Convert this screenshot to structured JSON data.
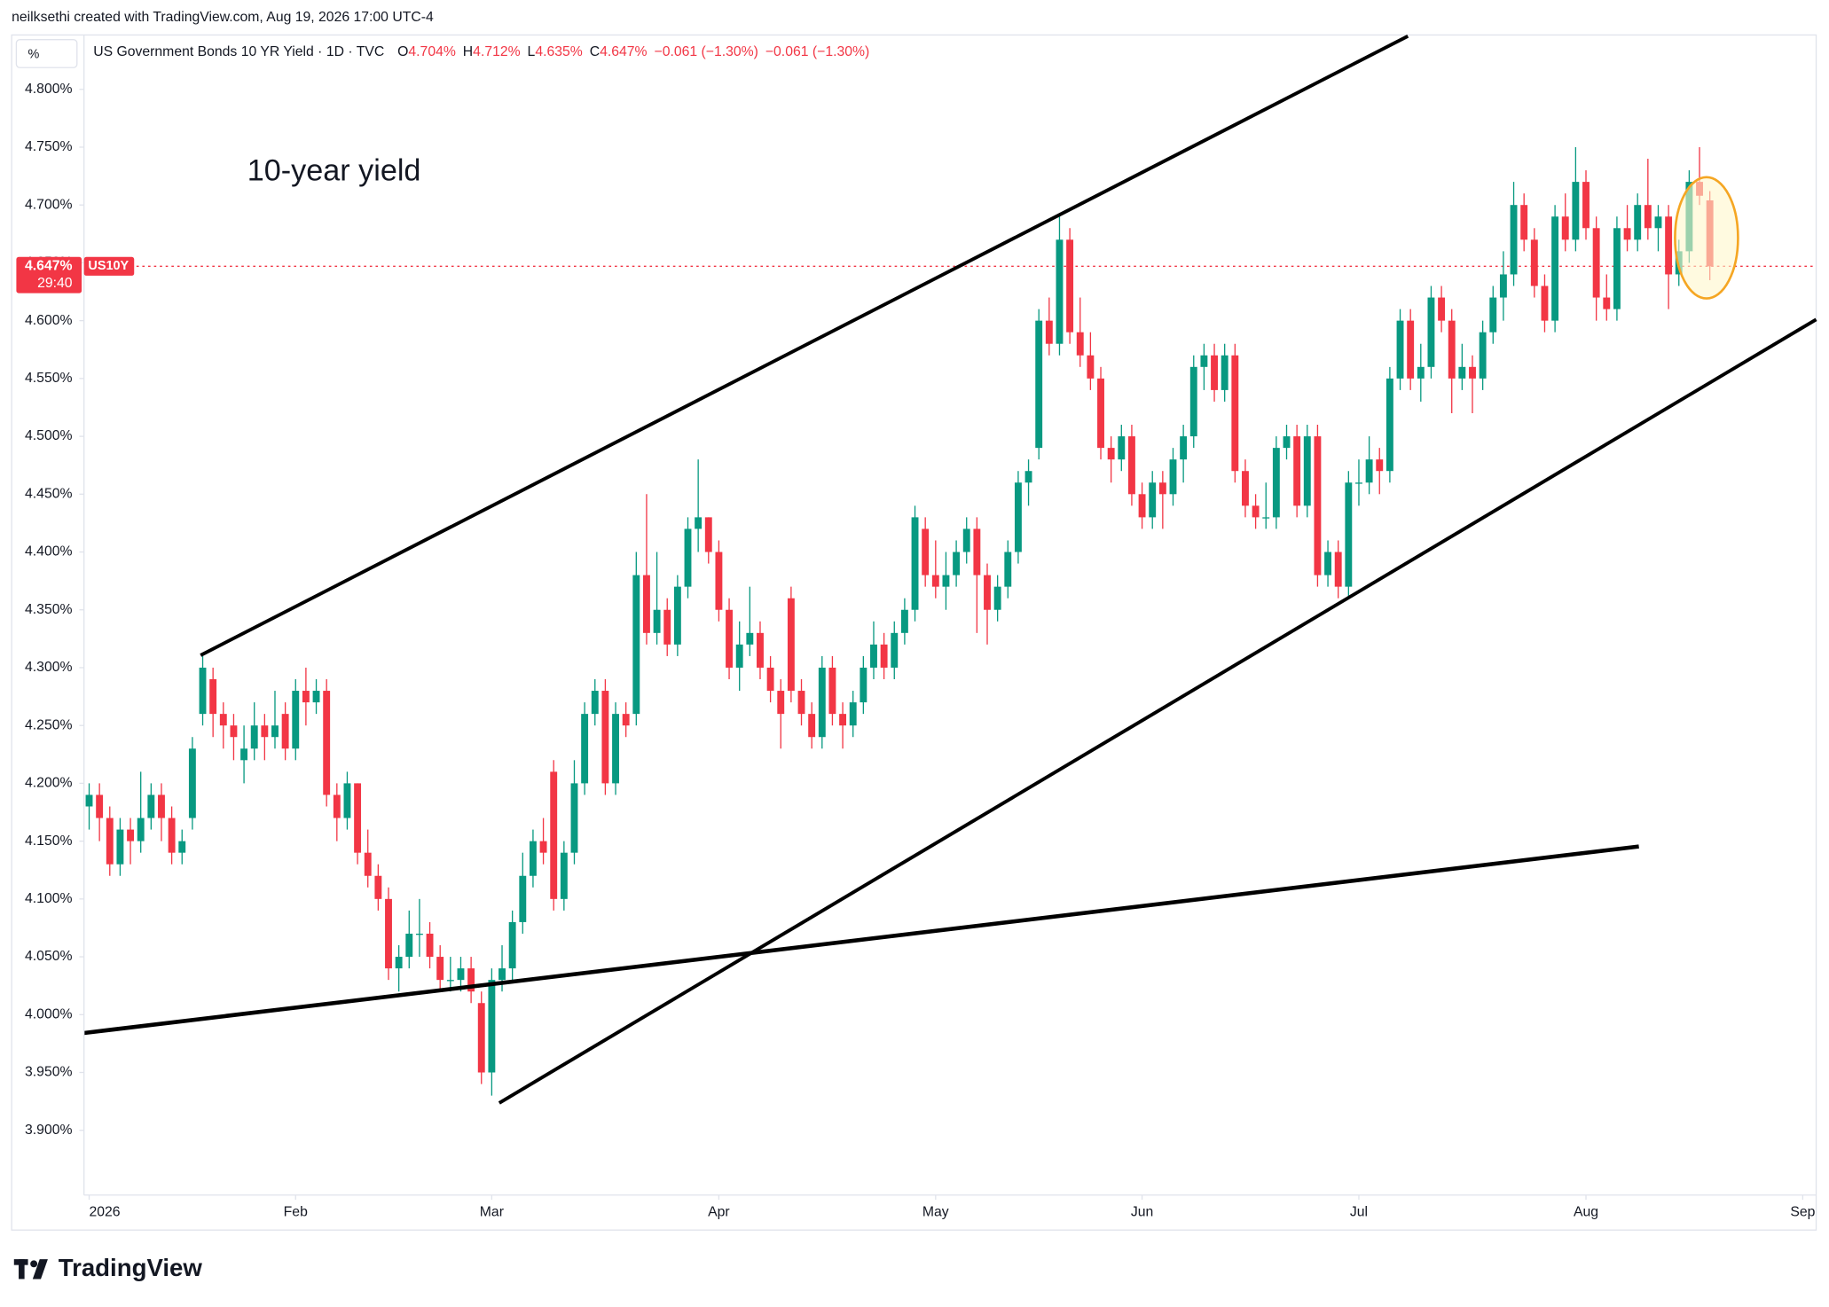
{
  "chart_data": {
    "type": "candlestick",
    "header": "neilksethi created with TradingView.com, Aug 19, 2026 17:00 UTC-4",
    "title": "US Government Bonds 10 YR Yield · 1D · TVC",
    "ohlc_legend": [
      {
        "key": "O",
        "text": "4.704%"
      },
      {
        "key": "H",
        "text": "4.712%"
      },
      {
        "key": "L",
        "text": "4.635%"
      },
      {
        "key": "C",
        "text": "4.647%"
      }
    ],
    "change": [
      "−0.061 (−1.30%)",
      "−0.061 (−1.30%)"
    ],
    "unit": "%",
    "annotation": "10-year yield",
    "symbol": "US10Y",
    "countdown": "29:40",
    "last_price": {
      "value": 4.647,
      "label": "4.647%"
    },
    "logo": "TradingView",
    "up_color": "#089981",
    "down_color": "#f23645",
    "xlim": [
      -0.5,
      167.3
    ],
    "xticks": [
      {
        "value": 0,
        "label": "2026"
      },
      {
        "value": 20,
        "label": "Feb"
      },
      {
        "value": 39,
        "label": "Mar"
      },
      {
        "value": 61,
        "label": "Apr"
      },
      {
        "value": 82,
        "label": "May"
      },
      {
        "value": 102,
        "label": "Jun"
      },
      {
        "value": 123,
        "label": "Jul"
      },
      {
        "value": 145,
        "label": "Aug"
      },
      {
        "value": 166,
        "label": "Sep"
      }
    ],
    "ylim": [
      3.844,
      4.847
    ],
    "yticks": [
      {
        "value": 3.9,
        "label": "3.900%"
      },
      {
        "value": 3.95,
        "label": "3.950%"
      },
      {
        "value": 4.0,
        "label": "4.000%"
      },
      {
        "value": 4.05,
        "label": "4.050%"
      },
      {
        "value": 4.1,
        "label": "4.100%"
      },
      {
        "value": 4.15,
        "label": "4.150%"
      },
      {
        "value": 4.2,
        "label": "4.200%"
      },
      {
        "value": 4.25,
        "label": "4.250%"
      },
      {
        "value": 4.3,
        "label": "4.300%"
      },
      {
        "value": 4.35,
        "label": "4.350%"
      },
      {
        "value": 4.4,
        "label": "4.400%"
      },
      {
        "value": 4.45,
        "label": "4.450%"
      },
      {
        "value": 4.5,
        "label": "4.500%"
      },
      {
        "value": 4.55,
        "label": "4.550%"
      },
      {
        "value": 4.6,
        "label": "4.600%"
      },
      {
        "value": 4.65,
        "label": "4.650%"
      },
      {
        "value": 4.7,
        "label": "4.700%"
      },
      {
        "value": 4.75,
        "label": "4.750%"
      },
      {
        "value": 4.8,
        "label": "4.800%"
      }
    ],
    "candles": [
      [
        4.18,
        4.2,
        4.16,
        4.19
      ],
      [
        4.19,
        4.2,
        4.15,
        4.17
      ],
      [
        4.17,
        4.18,
        4.12,
        4.13
      ],
      [
        4.13,
        4.17,
        4.12,
        4.16
      ],
      [
        4.16,
        4.17,
        4.13,
        4.15
      ],
      [
        4.15,
        4.21,
        4.14,
        4.17
      ],
      [
        4.17,
        4.2,
        4.16,
        4.19
      ],
      [
        4.19,
        4.2,
        4.15,
        4.17
      ],
      [
        4.17,
        4.18,
        4.13,
        4.14
      ],
      [
        4.14,
        4.16,
        4.13,
        4.15
      ],
      [
        4.17,
        4.24,
        4.16,
        4.23
      ],
      [
        4.26,
        4.31,
        4.25,
        4.3
      ],
      [
        4.29,
        4.3,
        4.24,
        4.26
      ],
      [
        4.26,
        4.27,
        4.23,
        4.25
      ],
      [
        4.25,
        4.26,
        4.22,
        4.24
      ],
      [
        4.22,
        4.25,
        4.2,
        4.23
      ],
      [
        4.23,
        4.27,
        4.22,
        4.25
      ],
      [
        4.25,
        4.26,
        4.22,
        4.24
      ],
      [
        4.24,
        4.28,
        4.23,
        4.25
      ],
      [
        4.26,
        4.27,
        4.22,
        4.23
      ],
      [
        4.23,
        4.29,
        4.22,
        4.28
      ],
      [
        4.28,
        4.3,
        4.25,
        4.27
      ],
      [
        4.27,
        4.29,
        4.26,
        4.28
      ],
      [
        4.28,
        4.29,
        4.18,
        4.19
      ],
      [
        4.19,
        4.2,
        4.15,
        4.17
      ],
      [
        4.17,
        4.21,
        4.16,
        4.2
      ],
      [
        4.2,
        4.2,
        4.13,
        4.14
      ],
      [
        4.14,
        4.16,
        4.11,
        4.12
      ],
      [
        4.12,
        4.13,
        4.09,
        4.1
      ],
      [
        4.1,
        4.11,
        4.03,
        4.04
      ],
      [
        4.04,
        4.06,
        4.02,
        4.05
      ],
      [
        4.05,
        4.09,
        4.04,
        4.07
      ],
      [
        4.07,
        4.1,
        4.05,
        4.07
      ],
      [
        4.07,
        4.08,
        4.04,
        4.05
      ],
      [
        4.05,
        4.06,
        4.02,
        4.03
      ],
      [
        4.03,
        4.05,
        4.02,
        4.03
      ],
      [
        4.03,
        4.05,
        4.02,
        4.04
      ],
      [
        4.04,
        4.05,
        4.01,
        4.02
      ],
      [
        4.01,
        4.02,
        3.94,
        3.95
      ],
      [
        3.95,
        4.04,
        3.93,
        4.03
      ],
      [
        4.03,
        4.06,
        4.02,
        4.04
      ],
      [
        4.04,
        4.09,
        4.03,
        4.08
      ],
      [
        4.08,
        4.14,
        4.07,
        4.12
      ],
      [
        4.12,
        4.16,
        4.11,
        4.15
      ],
      [
        4.15,
        4.17,
        4.13,
        4.14
      ],
      [
        4.21,
        4.22,
        4.09,
        4.1
      ],
      [
        4.1,
        4.15,
        4.09,
        4.14
      ],
      [
        4.14,
        4.22,
        4.13,
        4.2
      ],
      [
        4.2,
        4.27,
        4.19,
        4.26
      ],
      [
        4.26,
        4.29,
        4.25,
        4.28
      ],
      [
        4.28,
        4.29,
        4.19,
        4.2
      ],
      [
        4.2,
        4.27,
        4.19,
        4.26
      ],
      [
        4.26,
        4.27,
        4.24,
        4.25
      ],
      [
        4.26,
        4.4,
        4.25,
        4.38
      ],
      [
        4.38,
        4.45,
        4.32,
        4.33
      ],
      [
        4.33,
        4.4,
        4.32,
        4.35
      ],
      [
        4.35,
        4.36,
        4.31,
        4.32
      ],
      [
        4.32,
        4.38,
        4.31,
        4.37
      ],
      [
        4.37,
        4.43,
        4.36,
        4.42
      ],
      [
        4.42,
        4.48,
        4.4,
        4.43
      ],
      [
        4.43,
        4.43,
        4.39,
        4.4
      ],
      [
        4.4,
        4.41,
        4.34,
        4.35
      ],
      [
        4.35,
        4.36,
        4.29,
        4.3
      ],
      [
        4.3,
        4.34,
        4.28,
        4.32
      ],
      [
        4.32,
        4.37,
        4.31,
        4.33
      ],
      [
        4.33,
        4.34,
        4.29,
        4.3
      ],
      [
        4.3,
        4.31,
        4.27,
        4.28
      ],
      [
        4.28,
        4.29,
        4.23,
        4.26
      ],
      [
        4.36,
        4.37,
        4.27,
        4.28
      ],
      [
        4.28,
        4.29,
        4.25,
        4.26
      ],
      [
        4.26,
        4.27,
        4.23,
        4.24
      ],
      [
        4.24,
        4.31,
        4.23,
        4.3
      ],
      [
        4.3,
        4.31,
        4.25,
        4.26
      ],
      [
        4.26,
        4.27,
        4.23,
        4.25
      ],
      [
        4.25,
        4.28,
        4.24,
        4.27
      ],
      [
        4.27,
        4.31,
        4.26,
        4.3
      ],
      [
        4.3,
        4.34,
        4.29,
        4.32
      ],
      [
        4.32,
        4.33,
        4.29,
        4.3
      ],
      [
        4.3,
        4.34,
        4.29,
        4.33
      ],
      [
        4.33,
        4.36,
        4.32,
        4.35
      ],
      [
        4.35,
        4.44,
        4.34,
        4.43
      ],
      [
        4.42,
        4.43,
        4.37,
        4.38
      ],
      [
        4.38,
        4.41,
        4.36,
        4.37
      ],
      [
        4.37,
        4.4,
        4.35,
        4.38
      ],
      [
        4.38,
        4.41,
        4.37,
        4.4
      ],
      [
        4.4,
        4.43,
        4.39,
        4.42
      ],
      [
        4.42,
        4.43,
        4.33,
        4.38
      ],
      [
        4.38,
        4.39,
        4.32,
        4.35
      ],
      [
        4.35,
        4.38,
        4.34,
        4.37
      ],
      [
        4.37,
        4.41,
        4.36,
        4.4
      ],
      [
        4.4,
        4.47,
        4.39,
        4.46
      ],
      [
        4.46,
        4.48,
        4.44,
        4.47
      ],
      [
        4.49,
        4.61,
        4.48,
        4.6
      ],
      [
        4.6,
        4.62,
        4.57,
        4.58
      ],
      [
        4.58,
        4.69,
        4.57,
        4.67
      ],
      [
        4.67,
        4.68,
        4.58,
        4.59
      ],
      [
        4.59,
        4.62,
        4.56,
        4.57
      ],
      [
        4.57,
        4.59,
        4.54,
        4.55
      ],
      [
        4.55,
        4.56,
        4.48,
        4.49
      ],
      [
        4.49,
        4.5,
        4.46,
        4.48
      ],
      [
        4.48,
        4.51,
        4.47,
        4.5
      ],
      [
        4.5,
        4.51,
        4.44,
        4.45
      ],
      [
        4.45,
        4.46,
        4.42,
        4.43
      ],
      [
        4.43,
        4.47,
        4.42,
        4.46
      ],
      [
        4.46,
        4.47,
        4.42,
        4.45
      ],
      [
        4.45,
        4.49,
        4.44,
        4.48
      ],
      [
        4.48,
        4.51,
        4.46,
        4.5
      ],
      [
        4.5,
        4.57,
        4.49,
        4.56
      ],
      [
        4.56,
        4.58,
        4.54,
        4.57
      ],
      [
        4.57,
        4.58,
        4.53,
        4.54
      ],
      [
        4.54,
        4.58,
        4.53,
        4.57
      ],
      [
        4.57,
        4.58,
        4.46,
        4.47
      ],
      [
        4.47,
        4.48,
        4.43,
        4.44
      ],
      [
        4.44,
        4.45,
        4.42,
        4.43
      ],
      [
        4.43,
        4.46,
        4.42,
        4.43
      ],
      [
        4.43,
        4.5,
        4.42,
        4.49
      ],
      [
        4.49,
        4.51,
        4.48,
        4.5
      ],
      [
        4.5,
        4.51,
        4.43,
        4.44
      ],
      [
        4.44,
        4.51,
        4.43,
        4.5
      ],
      [
        4.5,
        4.51,
        4.37,
        4.38
      ],
      [
        4.38,
        4.41,
        4.37,
        4.4
      ],
      [
        4.4,
        4.41,
        4.36,
        4.37
      ],
      [
        4.37,
        4.47,
        4.36,
        4.46
      ],
      [
        4.46,
        4.48,
        4.44,
        4.46
      ],
      [
        4.46,
        4.5,
        4.45,
        4.48
      ],
      [
        4.48,
        4.49,
        4.45,
        4.47
      ],
      [
        4.47,
        4.56,
        4.46,
        4.55
      ],
      [
        4.55,
        4.61,
        4.54,
        4.6
      ],
      [
        4.6,
        4.61,
        4.54,
        4.55
      ],
      [
        4.55,
        4.58,
        4.53,
        4.56
      ],
      [
        4.56,
        4.63,
        4.55,
        4.62
      ],
      [
        4.62,
        4.63,
        4.59,
        4.6
      ],
      [
        4.6,
        4.61,
        4.52,
        4.55
      ],
      [
        4.55,
        4.58,
        4.54,
        4.56
      ],
      [
        4.56,
        4.57,
        4.52,
        4.55
      ],
      [
        4.55,
        4.6,
        4.54,
        4.59
      ],
      [
        4.59,
        4.63,
        4.58,
        4.62
      ],
      [
        4.62,
        4.66,
        4.6,
        4.64
      ],
      [
        4.64,
        4.72,
        4.63,
        4.7
      ],
      [
        4.7,
        4.71,
        4.66,
        4.67
      ],
      [
        4.67,
        4.68,
        4.62,
        4.63
      ],
      [
        4.63,
        4.64,
        4.59,
        4.6
      ],
      [
        4.6,
        4.7,
        4.59,
        4.69
      ],
      [
        4.69,
        4.71,
        4.66,
        4.67
      ],
      [
        4.67,
        4.75,
        4.66,
        4.72
      ],
      [
        4.72,
        4.73,
        4.67,
        4.68
      ],
      [
        4.68,
        4.69,
        4.6,
        4.62
      ],
      [
        4.62,
        4.64,
        4.6,
        4.61
      ],
      [
        4.61,
        4.69,
        4.6,
        4.68
      ],
      [
        4.68,
        4.7,
        4.66,
        4.67
      ],
      [
        4.67,
        4.71,
        4.66,
        4.7
      ],
      [
        4.7,
        4.74,
        4.67,
        4.68
      ],
      [
        4.68,
        4.7,
        4.66,
        4.69
      ],
      [
        4.69,
        4.7,
        4.61,
        4.64
      ],
      [
        4.64,
        4.67,
        4.63,
        4.66
      ],
      [
        4.66,
        4.73,
        4.65,
        4.72
      ],
      [
        4.72,
        4.75,
        4.7,
        4.708
      ],
      [
        4.704,
        4.712,
        4.635,
        4.647
      ]
    ]
  }
}
